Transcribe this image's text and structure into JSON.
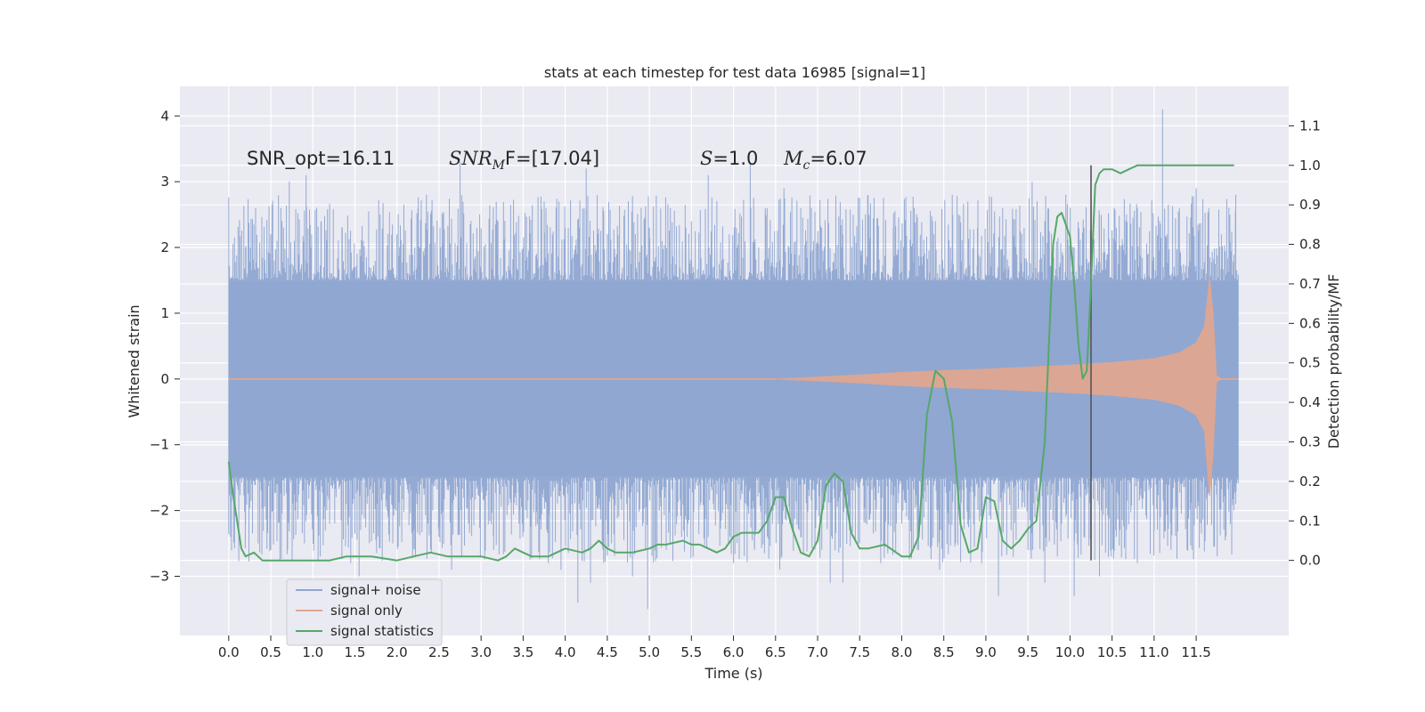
{
  "chart_data": {
    "type": "line",
    "title": "stats at each timestep for test data 16985 [signal=1]",
    "xlabel": "Time (s)",
    "ylabel": "Whitened strain",
    "y2label": "Detection probability/MF",
    "xlim": [
      -0.58,
      12.6
    ],
    "ylim": [
      -3.9,
      4.45
    ],
    "y2lim": [
      -0.19,
      1.2
    ],
    "x_ticks": [
      "0.0",
      "0.5",
      "1.0",
      "1.5",
      "2.0",
      "2.5",
      "3.0",
      "3.5",
      "4.0",
      "4.5",
      "5.0",
      "5.5",
      "6.0",
      "6.5",
      "7.0",
      "7.5",
      "8.0",
      "8.5",
      "9.0",
      "9.5",
      "10.0",
      "10.5",
      "11.0",
      "11.5"
    ],
    "x_tick_values": [
      0,
      0.5,
      1,
      1.5,
      2,
      2.5,
      3,
      3.5,
      4,
      4.5,
      5,
      5.5,
      6,
      6.5,
      7,
      7.5,
      8,
      8.5,
      9,
      9.5,
      10,
      10.5,
      11,
      11.5
    ],
    "y_ticks": [
      "−3",
      "−2",
      "−1",
      "0",
      "1",
      "2",
      "3",
      "4"
    ],
    "y_tick_values": [
      -3,
      -2,
      -1,
      0,
      1,
      2,
      3,
      4
    ],
    "y2_ticks": [
      "0.0",
      "0.1",
      "0.2",
      "0.3",
      "0.4",
      "0.5",
      "0.6",
      "0.7",
      "0.8",
      "0.9",
      "1.0",
      "1.1"
    ],
    "y2_tick_values": [
      0,
      0.1,
      0.2,
      0.3,
      0.4,
      0.5,
      0.6,
      0.7,
      0.8,
      0.9,
      1.0,
      1.1
    ],
    "grid": true,
    "legend_position": "bottom-left",
    "annotations": {
      "snr_opt": "SNR_opt=16.11",
      "snr_mf_main": "SNR",
      "snr_mf_sub": "M",
      "snr_mf_rest": "F=[17.04]",
      "s_main": "S",
      "s_rest": "=1.0",
      "mc_main": "M",
      "mc_sub": "c",
      "mc_rest": "=6.07"
    },
    "vline_x": 10.25,
    "series": [
      {
        "name": "signal+ noise",
        "color": "#8fa6d1",
        "description_free": true,
        "x_range": [
          0.0,
          12.0
        ],
        "envelope": {
          "dense_upper": 1.48,
          "dense_lower": -1.48,
          "peaks_up": [
            [
              0.05,
              1.4
            ],
            [
              0.2,
              2.0
            ],
            [
              0.3,
              2.3
            ],
            [
              0.32,
              2.6
            ],
            [
              0.5,
              2.2
            ],
            [
              0.62,
              2.6
            ],
            [
              0.72,
              3.0
            ],
            [
              0.78,
              2.1
            ],
            [
              0.92,
              3.1
            ],
            [
              1.1,
              2.4
            ],
            [
              1.35,
              2.3
            ],
            [
              1.6,
              2.1
            ],
            [
              1.8,
              2.5
            ],
            [
              2.0,
              2.2
            ],
            [
              2.25,
              2.6
            ],
            [
              2.35,
              2.8
            ],
            [
              2.55,
              2.5
            ],
            [
              2.75,
              3.3
            ],
            [
              2.95,
              2.3
            ],
            [
              3.2,
              2.4
            ],
            [
              3.5,
              2.0
            ],
            [
              3.75,
              2.7
            ],
            [
              4.0,
              2.3
            ],
            [
              4.25,
              3.2
            ],
            [
              4.5,
              2.2
            ],
            [
              4.75,
              2.7
            ],
            [
              5.0,
              2.3
            ],
            [
              5.25,
              2.6
            ],
            [
              5.5,
              2.4
            ],
            [
              5.7,
              3.1
            ],
            [
              5.95,
              2.2
            ],
            [
              6.2,
              3.3
            ],
            [
              6.4,
              2.6
            ],
            [
              6.6,
              2.9
            ],
            [
              6.8,
              2.6
            ],
            [
              7.05,
              2.3
            ],
            [
              7.3,
              2.2
            ],
            [
              7.6,
              2.8
            ],
            [
              7.9,
              2.3
            ],
            [
              8.15,
              2.6
            ],
            [
              8.4,
              2.4
            ],
            [
              8.6,
              2.8
            ],
            [
              8.9,
              2.3
            ],
            [
              9.2,
              2.6
            ],
            [
              9.55,
              3.0
            ],
            [
              9.7,
              2.4
            ],
            [
              9.95,
              2.8
            ],
            [
              10.05,
              2.0
            ],
            [
              10.35,
              2.5
            ],
            [
              10.55,
              2.3
            ],
            [
              10.8,
              2.6
            ],
            [
              11.05,
              2.3
            ],
            [
              11.1,
              4.1
            ],
            [
              11.3,
              2.6
            ],
            [
              11.5,
              2.9
            ],
            [
              11.65,
              2.6
            ],
            [
              11.8,
              2.2
            ],
            [
              11.9,
              2.5
            ],
            [
              11.97,
              2.8
            ]
          ],
          "peaks_down": [
            [
              0.02,
              -2.4
            ],
            [
              0.2,
              -2.2
            ],
            [
              0.35,
              -2.5
            ],
            [
              0.5,
              -2.6
            ],
            [
              0.7,
              -2.6
            ],
            [
              0.9,
              -2.5
            ],
            [
              1.2,
              -2.2
            ],
            [
              1.45,
              -2.8
            ],
            [
              1.55,
              -3.0
            ],
            [
              1.75,
              -2.3
            ],
            [
              1.95,
              -2.5
            ],
            [
              2.2,
              -2.3
            ],
            [
              2.5,
              -2.4
            ],
            [
              2.65,
              -2.9
            ],
            [
              2.85,
              -2.2
            ],
            [
              3.15,
              -2.6
            ],
            [
              3.45,
              -2.2
            ],
            [
              3.8,
              -2.8
            ],
            [
              3.95,
              -2.9
            ],
            [
              4.15,
              -3.4
            ],
            [
              4.3,
              -3.1
            ],
            [
              4.55,
              -2.5
            ],
            [
              4.8,
              -3.0
            ],
            [
              4.98,
              -3.5
            ],
            [
              5.2,
              -2.6
            ],
            [
              5.45,
              -2.4
            ],
            [
              5.7,
              -2.4
            ],
            [
              6.0,
              -2.8
            ],
            [
              6.25,
              -2.6
            ],
            [
              6.55,
              -2.9
            ],
            [
              6.8,
              -2.4
            ],
            [
              7.05,
              -2.6
            ],
            [
              7.15,
              -3.1
            ],
            [
              7.3,
              -3.1
            ],
            [
              7.5,
              -2.5
            ],
            [
              7.75,
              -2.8
            ],
            [
              8.0,
              -2.2
            ],
            [
              8.2,
              -2.6
            ],
            [
              8.45,
              -2.9
            ],
            [
              8.7,
              -2.6
            ],
            [
              8.95,
              -2.8
            ],
            [
              9.15,
              -3.3
            ],
            [
              9.3,
              -2.3
            ],
            [
              9.5,
              -2.6
            ],
            [
              9.7,
              -3.1
            ],
            [
              9.85,
              -2.7
            ],
            [
              10.05,
              -3.3
            ],
            [
              10.35,
              -3.0
            ],
            [
              10.55,
              -2.4
            ],
            [
              10.8,
              -2.8
            ],
            [
              11.0,
              -2.3
            ],
            [
              11.2,
              -2.6
            ],
            [
              11.45,
              -2.6
            ],
            [
              11.6,
              -2.3
            ],
            [
              11.75,
              -2.7
            ],
            [
              11.85,
              -2.4
            ],
            [
              11.97,
              -1.9
            ]
          ]
        }
      },
      {
        "name": "signal only",
        "color": "#e0a690",
        "x_range": [
          0.0,
          12.0
        ],
        "envelope": {
          "start_x": 6.5,
          "amplitude_at": [
            [
              6.5,
              0.0
            ],
            [
              7.0,
              0.03
            ],
            [
              7.5,
              0.06
            ],
            [
              8.0,
              0.1
            ],
            [
              8.5,
              0.13
            ],
            [
              9.0,
              0.15
            ],
            [
              9.5,
              0.18
            ],
            [
              10.0,
              0.21
            ],
            [
              10.5,
              0.25
            ],
            [
              11.0,
              0.31
            ],
            [
              11.3,
              0.4
            ],
            [
              11.5,
              0.55
            ],
            [
              11.6,
              0.8
            ],
            [
              11.66,
              1.55
            ],
            [
              11.7,
              1.0
            ],
            [
              11.74,
              0.05
            ],
            [
              11.8,
              0.0
            ]
          ]
        }
      },
      {
        "name": "signal statistics",
        "color": "#55a868",
        "axis": "right",
        "x": [
          0.0,
          0.05,
          0.1,
          0.15,
          0.2,
          0.3,
          0.4,
          0.5,
          0.6,
          0.8,
          1.0,
          1.2,
          1.4,
          1.5,
          1.7,
          2.0,
          2.2,
          2.4,
          2.6,
          2.8,
          3.0,
          3.2,
          3.3,
          3.4,
          3.5,
          3.6,
          3.8,
          4.0,
          4.2,
          4.3,
          4.4,
          4.5,
          4.6,
          4.8,
          5.0,
          5.1,
          5.2,
          5.4,
          5.5,
          5.6,
          5.7,
          5.8,
          5.9,
          6.0,
          6.1,
          6.2,
          6.3,
          6.4,
          6.5,
          6.6,
          6.7,
          6.8,
          6.9,
          7.0,
          7.1,
          7.2,
          7.3,
          7.4,
          7.5,
          7.6,
          7.8,
          8.0,
          8.1,
          8.2,
          8.3,
          8.4,
          8.5,
          8.6,
          8.7,
          8.8,
          8.9,
          9.0,
          9.1,
          9.2,
          9.3,
          9.4,
          9.5,
          9.6,
          9.7,
          9.8,
          9.85,
          9.9,
          10.0,
          10.05,
          10.1,
          10.15,
          10.2,
          10.25,
          10.3,
          10.35,
          10.4,
          10.5,
          10.6,
          10.7,
          10.8,
          11.0,
          11.5,
          11.95
        ],
        "values": [
          0.25,
          0.17,
          0.1,
          0.03,
          0.01,
          0.02,
          0.0,
          0.0,
          0.0,
          0.0,
          0.0,
          0.0,
          0.01,
          0.01,
          0.01,
          0.0,
          0.01,
          0.02,
          0.01,
          0.01,
          0.01,
          0.0,
          0.01,
          0.03,
          0.02,
          0.01,
          0.01,
          0.03,
          0.02,
          0.03,
          0.05,
          0.03,
          0.02,
          0.02,
          0.03,
          0.04,
          0.04,
          0.05,
          0.04,
          0.04,
          0.03,
          0.02,
          0.03,
          0.06,
          0.07,
          0.07,
          0.07,
          0.1,
          0.16,
          0.16,
          0.08,
          0.02,
          0.01,
          0.05,
          0.19,
          0.22,
          0.2,
          0.07,
          0.03,
          0.03,
          0.04,
          0.01,
          0.01,
          0.06,
          0.37,
          0.48,
          0.46,
          0.35,
          0.09,
          0.02,
          0.03,
          0.16,
          0.15,
          0.05,
          0.03,
          0.05,
          0.08,
          0.1,
          0.3,
          0.8,
          0.87,
          0.88,
          0.82,
          0.7,
          0.55,
          0.46,
          0.48,
          0.7,
          0.95,
          0.98,
          0.99,
          0.99,
          0.98,
          0.99,
          1.0,
          1.0,
          1.0,
          1.0
        ]
      }
    ],
    "legend": [
      {
        "label": "signal+ noise",
        "color": "#8fa6d1"
      },
      {
        "label": "signal only",
        "color": "#e0a690"
      },
      {
        "label": "signal statistics",
        "color": "#55a868"
      }
    ]
  }
}
